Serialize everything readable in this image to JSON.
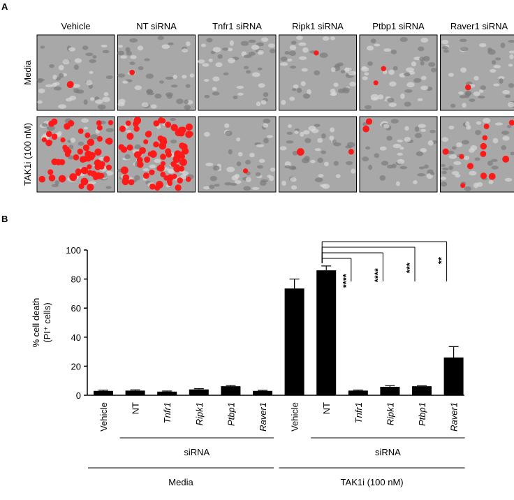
{
  "panel_a": {
    "label": "A",
    "columns": [
      "Vehicle",
      "NT siRNA",
      "Tnfr1 siRNA",
      "Ripk1 siRNA",
      "Ptbp1 siRNA",
      "Raver1 siRNA"
    ],
    "rows": [
      "Media",
      "TAK1i (100 nM)"
    ]
  },
  "chart_data": {
    "type": "bar",
    "panel_label": "B",
    "y_label": [
      "% cell death",
      "(PI⁺ cells)"
    ],
    "categories": [
      "Vehicle",
      "NT",
      "Tnfr1",
      "Ripk1",
      "Ptbp1",
      "Raver1",
      "Vehicle",
      "NT",
      "Tnfr1",
      "Ripk1",
      "Ptbp1",
      "Raver1"
    ],
    "values": [
      3,
      3.2,
      2.5,
      4,
      6.2,
      3,
      73.5,
      86,
      3.2,
      5.8,
      6.2,
      26
    ],
    "errors": [
      0.5,
      0.5,
      0.4,
      0.5,
      0.5,
      0.4,
      6.5,
      3,
      0.4,
      0.8,
      0.3,
      7.5
    ],
    "color": "#000000",
    "ylim": [
      0,
      100
    ],
    "yticks": [
      0,
      20,
      40,
      60,
      80,
      100
    ],
    "significance": [
      {
        "text": "****",
        "from": 7,
        "to": 8
      },
      {
        "text": "****",
        "from": 7,
        "to": 9
      },
      {
        "text": "***",
        "from": 7,
        "to": 10
      },
      {
        "text": "**",
        "from": 7,
        "to": 11
      }
    ],
    "group_labels": [
      {
        "text": "siRNA",
        "from": 1,
        "to": 5,
        "level": 1
      },
      {
        "text": "siRNA",
        "from": 7,
        "to": 11,
        "level": 1
      },
      {
        "text": "Media",
        "from": 0,
        "to": 5,
        "level": 2
      },
      {
        "text": "TAK1i (100 nM)",
        "from": 6,
        "to": 11,
        "level": 2
      }
    ]
  }
}
